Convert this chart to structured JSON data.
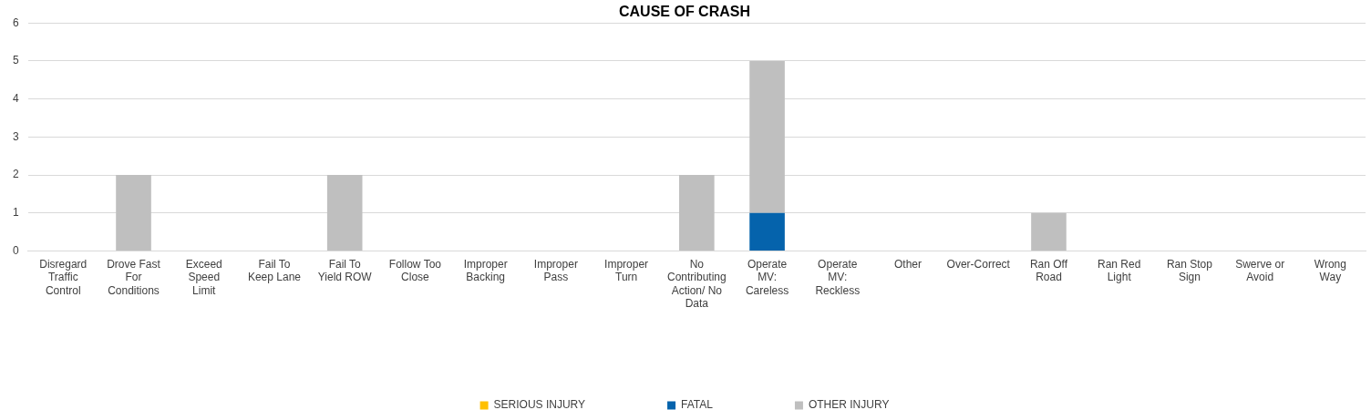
{
  "chart_data": {
    "type": "bar",
    "title": "CAUSE OF CRASH",
    "stacked": true,
    "grid": "y",
    "legend": "bottom",
    "categories": [
      "Disregard Traffic Control",
      "Drove Fast For Conditions",
      "Exceed Speed Limit",
      "Fail To Keep Lane",
      "Fail To Yield ROW",
      "Follow Too Close",
      "Improper Backing",
      "Improper Pass",
      "Improper Turn",
      "No Contributing Action/ No Data",
      "Operate MV: Careless",
      "Operate MV: Reckless",
      "Other",
      "Over-Correct",
      "Ran Off Road",
      "Ran Red Light",
      "Ran Stop Sign",
      "Swerve or Avoid",
      "Wrong Way"
    ],
    "series": [
      {
        "name": "SERIOUS INJURY",
        "color": "#ffc000",
        "values": [
          0,
          0,
          0,
          0,
          0,
          0,
          0,
          0,
          0,
          0,
          0,
          0,
          0,
          0,
          0,
          0,
          0,
          0,
          0
        ]
      },
      {
        "name": "FATAL",
        "color": "#0563ac",
        "values": [
          0,
          0,
          0,
          0,
          0,
          0,
          0,
          0,
          0,
          0,
          1,
          0,
          0,
          0,
          0,
          0,
          0,
          0,
          0
        ]
      },
      {
        "name": "OTHER INJURY",
        "color": "#bfbfbf",
        "values": [
          0,
          2,
          0,
          0,
          2,
          0,
          0,
          0,
          0,
          2,
          4,
          0,
          0,
          0,
          1,
          0,
          0,
          0,
          0
        ]
      }
    ],
    "ylim": [
      0,
      6
    ],
    "yticks": [
      0,
      1,
      2,
      3,
      4,
      5,
      6
    ]
  }
}
